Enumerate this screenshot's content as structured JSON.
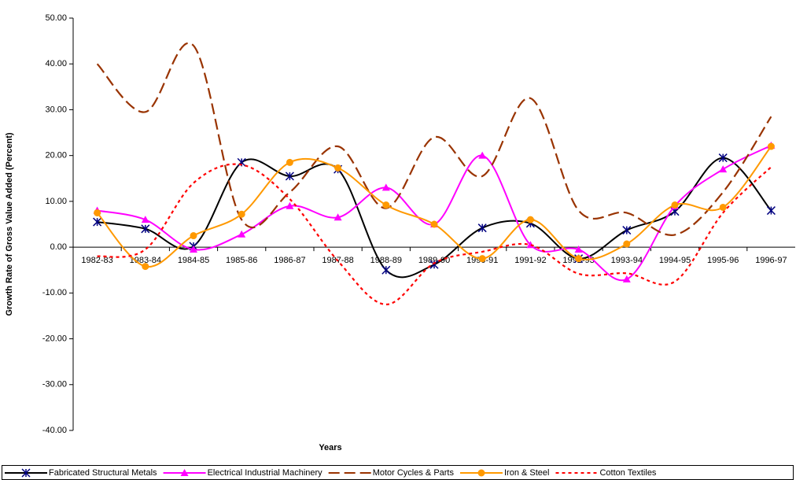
{
  "chart_data": {
    "type": "line",
    "x_label": "Years",
    "y_label": "Growth Rate of Gross Value Added (Percent)",
    "categories": [
      "1982-83",
      "1983-84",
      "1984-85",
      "1985-86",
      "1986-87",
      "1987-88",
      "1988-89",
      "1989-90",
      "1990-91",
      "1991-92",
      "1992-93",
      "1993-94",
      "1994-95",
      "1995-96",
      "1996-97"
    ],
    "series": [
      {
        "name": "Fabricated Structural Metals",
        "color": "#000000",
        "marker": "star",
        "dash": "solid",
        "values": [
          5.5,
          4,
          0.2,
          18.5,
          15.5,
          17,
          -5,
          -3.8,
          4.2,
          5.2,
          -2.5,
          3.7,
          7.8,
          19.5,
          8
        ]
      },
      {
        "name": "Electrical Industrial Machinery",
        "color": "#ff00ff",
        "marker": "triangle",
        "dash": "solid",
        "values": [
          8,
          6,
          -0.5,
          2.8,
          9,
          6.5,
          13,
          5,
          20,
          0.5,
          -0.5,
          -7,
          9,
          17,
          22.2
        ]
      },
      {
        "name": "Motor Cycles & Parts",
        "color": "#993300",
        "marker": "none",
        "dash": "dashed",
        "values": [
          40,
          29.5,
          44,
          6,
          12,
          22,
          8.5,
          24,
          15.5,
          32.5,
          8,
          7.5,
          2.7,
          12,
          28.5
        ]
      },
      {
        "name": "Iron & Steel",
        "color": "#ff9900",
        "marker": "circle",
        "dash": "solid",
        "values": [
          7.5,
          -4.2,
          2.5,
          7.2,
          18.5,
          17.3,
          9.2,
          5,
          -2.5,
          6,
          -2.5,
          0.7,
          9.2,
          8.7,
          22
        ]
      },
      {
        "name": "Cotton Textiles",
        "color": "#ff0000",
        "marker": "none",
        "dash": "dotted",
        "values": [
          -2,
          -0.5,
          14,
          18,
          10.5,
          -3,
          -12.5,
          -3.5,
          -1,
          0.5,
          -5.8,
          -5.7,
          -7.5,
          7.5,
          17.5
        ]
      }
    ],
    "ylim": [
      -40,
      50
    ],
    "yticks": [
      {
        "value": -40,
        "label": "-40.00"
      },
      {
        "value": -30,
        "label": "-30.00"
      },
      {
        "value": -20,
        "label": "-20.00"
      },
      {
        "value": -10,
        "label": "-10.00"
      },
      {
        "value": 0,
        "label": "0.00"
      },
      {
        "value": 10,
        "label": "10.00"
      },
      {
        "value": 20,
        "label": "20.00"
      },
      {
        "value": 30,
        "label": "30.00"
      },
      {
        "value": 40,
        "label": "40.00"
      },
      {
        "value": 50,
        "label": "50.00"
      }
    ],
    "legend": "bottom",
    "smooth": true
  }
}
